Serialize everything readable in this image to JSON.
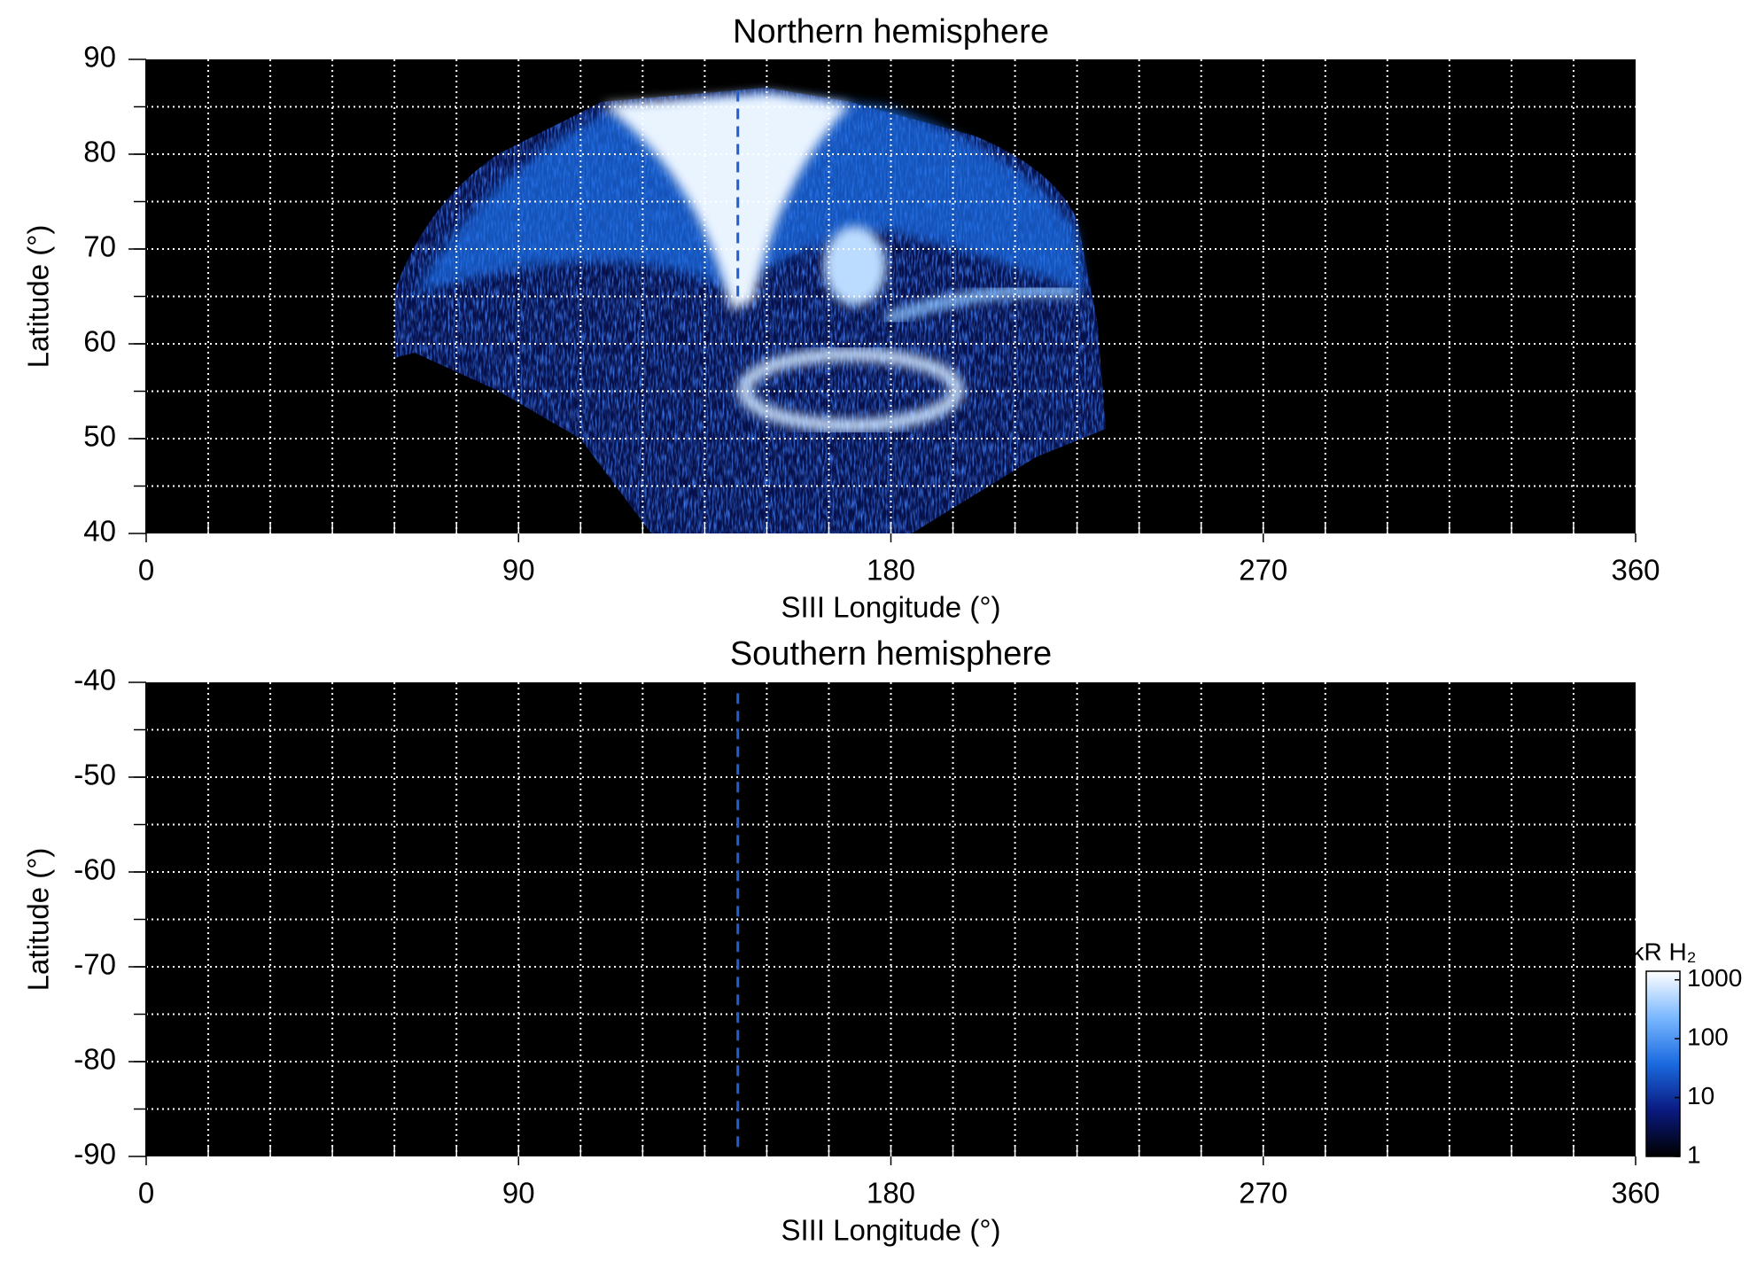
{
  "chart_data": [
    {
      "type": "map",
      "title": "Northern hemisphere",
      "x_label": "SIII Longitude (°)",
      "y_label": "Latitude (°)",
      "xlim": [
        0,
        360
      ],
      "xticks": [
        0,
        90,
        180,
        270,
        360
      ],
      "ylim": [
        40,
        90
      ],
      "yticks": [
        40,
        50,
        60,
        70,
        80,
        90
      ],
      "xgrid": [
        15,
        30,
        45,
        60,
        75,
        90,
        105,
        120,
        135,
        150,
        165,
        180,
        195,
        210,
        225,
        240,
        255,
        270,
        285,
        300,
        315,
        330,
        345
      ],
      "ygrid": [
        45,
        50,
        55,
        60,
        65,
        70,
        75,
        80,
        85
      ],
      "vline": {
        "x": 143,
        "y": [
          65,
          87
        ],
        "color": "#1f5fd0"
      }
    },
    {
      "type": "map",
      "title": "Southern hemisphere",
      "x_label": "SIII Longitude (°)",
      "y_label": "Latitude (°)",
      "xlim": [
        0,
        360
      ],
      "xticks": [
        0,
        90,
        180,
        270,
        360
      ],
      "ylim": [
        -90,
        -40
      ],
      "yticks": [
        -90,
        -80,
        -70,
        -60,
        -50,
        -40
      ],
      "xgrid": [
        15,
        30,
        45,
        60,
        75,
        90,
        105,
        120,
        135,
        150,
        165,
        180,
        195,
        210,
        225,
        240,
        255,
        270,
        285,
        300,
        315,
        330,
        345
      ],
      "ygrid": [
        -85,
        -80,
        -75,
        -70,
        -65,
        -60,
        -55,
        -50,
        -45
      ],
      "vline": {
        "x": 143,
        "y": [
          -89,
          -41
        ],
        "color": "#1f5fd0"
      }
    },
    {
      "type": "colorbar",
      "label": "kR H₂",
      "log": true,
      "clim": [
        1,
        1400
      ],
      "ticks": [
        1,
        10,
        100,
        1000
      ],
      "colormap": [
        "#000000",
        "#0a1a80",
        "#1a6ae0",
        "#7ab8ff",
        "#ffffff"
      ]
    }
  ]
}
